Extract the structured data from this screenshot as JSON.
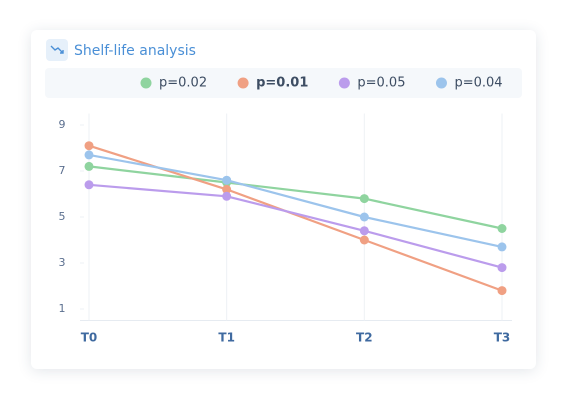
{
  "chart_data": {
    "type": "line",
    "title": "Shelf-life analysis",
    "categories": [
      "T0",
      "T1",
      "T2",
      "T3"
    ],
    "series": [
      {
        "name": "p=0.02",
        "color": "#8fd49f",
        "values": [
          7.2,
          6.5,
          5.8,
          4.5
        ]
      },
      {
        "name": "p=0.01",
        "color": "#f0a083",
        "bold": true,
        "values": [
          8.1,
          6.2,
          4.0,
          1.8
        ]
      },
      {
        "name": "p=0.05",
        "color": "#bb9cec",
        "values": [
          6.4,
          5.9,
          4.4,
          2.8
        ]
      },
      {
        "name": "p=0.04",
        "color": "#9cc4ec",
        "values": [
          7.7,
          6.6,
          5.0,
          3.7
        ]
      }
    ],
    "ylim": [
      0.5,
      9.5
    ],
    "yticks": [
      1,
      3,
      5,
      7,
      9
    ],
    "grid": true,
    "legend": "top"
  }
}
